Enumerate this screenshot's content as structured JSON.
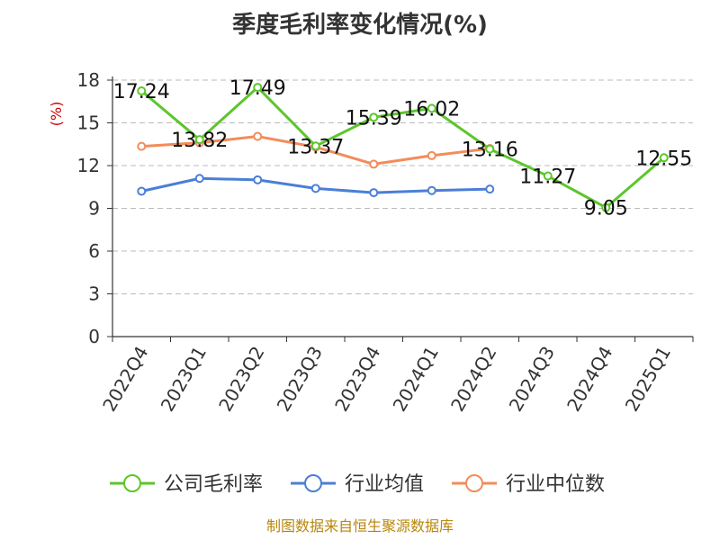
{
  "chart_data": {
    "type": "line",
    "title": "季度毛利率变化情况(%)",
    "ylabel": "(%)",
    "xlabel": "",
    "categories": [
      "2022Q4",
      "2023Q1",
      "2023Q2",
      "2023Q3",
      "2023Q4",
      "2024Q1",
      "2024Q2",
      "2024Q3",
      "2024Q4",
      "2025Q1"
    ],
    "ylim": [
      0,
      18
    ],
    "yticks": [
      0,
      3,
      6,
      9,
      12,
      15,
      18
    ],
    "grid": true,
    "legend_position": "bottom",
    "series": [
      {
        "name": "公司毛利率",
        "color": "#5cc62a",
        "values": [
          17.24,
          13.82,
          17.49,
          13.37,
          15.39,
          16.02,
          13.16,
          11.27,
          9.05,
          12.55
        ],
        "labels": [
          "17.24",
          "13.82",
          "17.49",
          "13.37",
          "15.39",
          "16.02",
          "13.16",
          "11.27",
          "9.05",
          "12.55"
        ]
      },
      {
        "name": "行业均值",
        "color": "#4a7fd6",
        "values": [
          10.2,
          11.1,
          11.0,
          10.4,
          10.1,
          10.25,
          10.35,
          null,
          null,
          null
        ]
      },
      {
        "name": "行业中位数",
        "color": "#f28c5a",
        "values": [
          13.35,
          13.6,
          14.05,
          13.3,
          12.1,
          12.7,
          13.2,
          null,
          null,
          null
        ]
      }
    ],
    "source": "制图数据来自恒生聚源数据库"
  }
}
